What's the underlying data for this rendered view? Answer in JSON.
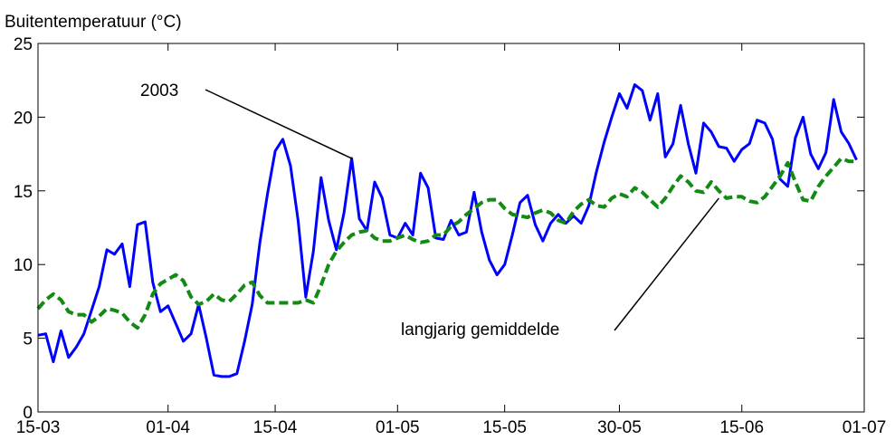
{
  "chart_data": {
    "type": "line",
    "ylabel": "Buitentemperatuur (°C)",
    "xlim": [
      "2003-03-15",
      "2003-07-01"
    ],
    "ylim": [
      0,
      25
    ],
    "x_ticks": [
      {
        "date": "2003-03-15",
        "label": "15-03"
      },
      {
        "date": "2003-04-01",
        "label": "01-04"
      },
      {
        "date": "2003-04-15",
        "label": "15-04"
      },
      {
        "date": "2003-05-01",
        "label": "01-05"
      },
      {
        "date": "2003-05-15",
        "label": "15-05"
      },
      {
        "date": "2003-05-30",
        "label": "30-05"
      },
      {
        "date": "2003-06-15",
        "label": "15-06"
      },
      {
        "date": "2003-07-01",
        "label": "01-07"
      }
    ],
    "y_ticks": [
      0,
      5,
      10,
      15,
      20,
      25
    ],
    "grid": false,
    "series": [
      {
        "name": "2003",
        "color": "#0000ff",
        "style": "solid",
        "points": [
          [
            "2003-03-15",
            5.2
          ],
          [
            "2003-03-16",
            5.3
          ],
          [
            "2003-03-17",
            3.4
          ],
          [
            "2003-03-18",
            5.5
          ],
          [
            "2003-03-19",
            3.7
          ],
          [
            "2003-03-20",
            4.4
          ],
          [
            "2003-03-21",
            5.3
          ],
          [
            "2003-03-22",
            6.9
          ],
          [
            "2003-03-23",
            8.5
          ],
          [
            "2003-03-24",
            11.0
          ],
          [
            "2003-03-25",
            10.7
          ],
          [
            "2003-03-26",
            11.4
          ],
          [
            "2003-03-27",
            8.5
          ],
          [
            "2003-03-28",
            12.7
          ],
          [
            "2003-03-29",
            12.9
          ],
          [
            "2003-03-30",
            8.8
          ],
          [
            "2003-03-31",
            6.8
          ],
          [
            "2003-04-01",
            7.2
          ],
          [
            "2003-04-02",
            6.0
          ],
          [
            "2003-04-03",
            4.8
          ],
          [
            "2003-04-04",
            5.3
          ],
          [
            "2003-04-05",
            7.3
          ],
          [
            "2003-04-06",
            5.0
          ],
          [
            "2003-04-07",
            2.5
          ],
          [
            "2003-04-08",
            2.4
          ],
          [
            "2003-04-09",
            2.4
          ],
          [
            "2003-04-10",
            2.6
          ],
          [
            "2003-04-11",
            4.8
          ],
          [
            "2003-04-12",
            7.3
          ],
          [
            "2003-04-13",
            11.5
          ],
          [
            "2003-04-14",
            14.8
          ],
          [
            "2003-04-15",
            17.7
          ],
          [
            "2003-04-16",
            18.5
          ],
          [
            "2003-04-17",
            16.7
          ],
          [
            "2003-04-18",
            13.0
          ],
          [
            "2003-04-19",
            7.8
          ],
          [
            "2003-04-20",
            10.9
          ],
          [
            "2003-04-21",
            15.9
          ],
          [
            "2003-04-22",
            13.0
          ],
          [
            "2003-04-23",
            11.0
          ],
          [
            "2003-04-24",
            13.5
          ],
          [
            "2003-04-25",
            17.2
          ],
          [
            "2003-04-26",
            13.1
          ],
          [
            "2003-04-27",
            12.3
          ],
          [
            "2003-04-28",
            15.6
          ],
          [
            "2003-04-29",
            14.5
          ],
          [
            "2003-04-30",
            12.0
          ],
          [
            "2003-05-01",
            11.8
          ],
          [
            "2003-05-02",
            12.8
          ],
          [
            "2003-05-03",
            12.0
          ],
          [
            "2003-05-04",
            16.2
          ],
          [
            "2003-05-05",
            15.2
          ],
          [
            "2003-05-06",
            11.8
          ],
          [
            "2003-05-07",
            11.7
          ],
          [
            "2003-05-08",
            13.0
          ],
          [
            "2003-05-09",
            12.0
          ],
          [
            "2003-05-10",
            12.2
          ],
          [
            "2003-05-11",
            14.9
          ],
          [
            "2003-05-12",
            12.2
          ],
          [
            "2003-05-13",
            10.3
          ],
          [
            "2003-05-14",
            9.3
          ],
          [
            "2003-05-15",
            10.0
          ],
          [
            "2003-05-16",
            12.0
          ],
          [
            "2003-05-17",
            14.2
          ],
          [
            "2003-05-18",
            14.7
          ],
          [
            "2003-05-19",
            12.7
          ],
          [
            "2003-05-20",
            11.6
          ],
          [
            "2003-05-21",
            12.8
          ],
          [
            "2003-05-22",
            13.4
          ],
          [
            "2003-05-23",
            12.8
          ],
          [
            "2003-05-24",
            13.3
          ],
          [
            "2003-05-25",
            12.8
          ],
          [
            "2003-05-26",
            14.0
          ],
          [
            "2003-05-27",
            16.3
          ],
          [
            "2003-05-28",
            18.3
          ],
          [
            "2003-05-29",
            20.0
          ],
          [
            "2003-05-30",
            21.6
          ],
          [
            "2003-05-31",
            20.6
          ],
          [
            "2003-06-01",
            22.2
          ],
          [
            "2003-06-02",
            21.8
          ],
          [
            "2003-06-03",
            19.8
          ],
          [
            "2003-06-04",
            21.6
          ],
          [
            "2003-06-05",
            17.3
          ],
          [
            "2003-06-06",
            18.2
          ],
          [
            "2003-06-07",
            20.8
          ],
          [
            "2003-06-08",
            18.2
          ],
          [
            "2003-06-09",
            16.2
          ],
          [
            "2003-06-10",
            19.6
          ],
          [
            "2003-06-11",
            19.0
          ],
          [
            "2003-06-12",
            18.0
          ],
          [
            "2003-06-13",
            17.9
          ],
          [
            "2003-06-14",
            17.0
          ],
          [
            "2003-06-15",
            17.8
          ],
          [
            "2003-06-16",
            18.2
          ],
          [
            "2003-06-17",
            19.8
          ],
          [
            "2003-06-18",
            19.6
          ],
          [
            "2003-06-19",
            18.5
          ],
          [
            "2003-06-20",
            15.8
          ],
          [
            "2003-06-21",
            15.3
          ],
          [
            "2003-06-22",
            18.6
          ],
          [
            "2003-06-23",
            20.0
          ],
          [
            "2003-06-24",
            17.5
          ],
          [
            "2003-06-25",
            16.5
          ],
          [
            "2003-06-26",
            17.6
          ],
          [
            "2003-06-27",
            21.2
          ],
          [
            "2003-06-28",
            19.0
          ],
          [
            "2003-06-29",
            18.2
          ],
          [
            "2003-06-30",
            17.1
          ]
        ]
      },
      {
        "name": "langjarig gemiddelde",
        "color": "#138a13",
        "style": "dashed",
        "points": [
          [
            "2003-03-15",
            7.0
          ],
          [
            "2003-03-16",
            7.6
          ],
          [
            "2003-03-17",
            8.0
          ],
          [
            "2003-03-18",
            7.6
          ],
          [
            "2003-03-19",
            6.8
          ],
          [
            "2003-03-20",
            6.6
          ],
          [
            "2003-03-21",
            6.6
          ],
          [
            "2003-03-22",
            6.1
          ],
          [
            "2003-03-23",
            6.5
          ],
          [
            "2003-03-24",
            7.0
          ],
          [
            "2003-03-25",
            6.9
          ],
          [
            "2003-03-26",
            6.7
          ],
          [
            "2003-03-27",
            6.1
          ],
          [
            "2003-03-28",
            5.7
          ],
          [
            "2003-03-29",
            6.6
          ],
          [
            "2003-03-30",
            8.0
          ],
          [
            "2003-03-31",
            8.7
          ],
          [
            "2003-04-01",
            9.0
          ],
          [
            "2003-04-02",
            9.3
          ],
          [
            "2003-04-03",
            8.9
          ],
          [
            "2003-04-04",
            7.8
          ],
          [
            "2003-04-05",
            7.3
          ],
          [
            "2003-04-06",
            7.5
          ],
          [
            "2003-04-07",
            8.0
          ],
          [
            "2003-04-08",
            7.6
          ],
          [
            "2003-04-09",
            7.5
          ],
          [
            "2003-04-10",
            8.0
          ],
          [
            "2003-04-11",
            8.6
          ],
          [
            "2003-04-12",
            8.8
          ],
          [
            "2003-04-13",
            7.9
          ],
          [
            "2003-04-14",
            7.4
          ],
          [
            "2003-04-15",
            7.4
          ],
          [
            "2003-04-16",
            7.4
          ],
          [
            "2003-04-17",
            7.4
          ],
          [
            "2003-04-18",
            7.4
          ],
          [
            "2003-04-19",
            7.6
          ],
          [
            "2003-04-20",
            7.4
          ],
          [
            "2003-04-21",
            8.6
          ],
          [
            "2003-04-22",
            10.0
          ],
          [
            "2003-04-23",
            10.9
          ],
          [
            "2003-04-24",
            11.5
          ],
          [
            "2003-04-25",
            12.0
          ],
          [
            "2003-04-26",
            12.2
          ],
          [
            "2003-04-27",
            12.3
          ],
          [
            "2003-04-28",
            11.8
          ],
          [
            "2003-04-29",
            11.6
          ],
          [
            "2003-04-30",
            11.6
          ],
          [
            "2003-05-01",
            11.8
          ],
          [
            "2003-05-02",
            12.0
          ],
          [
            "2003-05-03",
            11.7
          ],
          [
            "2003-05-04",
            11.5
          ],
          [
            "2003-05-05",
            11.6
          ],
          [
            "2003-05-06",
            12.0
          ],
          [
            "2003-05-07",
            12.0
          ],
          [
            "2003-05-08",
            12.6
          ],
          [
            "2003-05-09",
            12.9
          ],
          [
            "2003-05-10",
            13.4
          ],
          [
            "2003-05-11",
            13.8
          ],
          [
            "2003-05-12",
            14.2
          ],
          [
            "2003-05-13",
            14.4
          ],
          [
            "2003-05-14",
            14.4
          ],
          [
            "2003-05-15",
            13.8
          ],
          [
            "2003-05-16",
            13.4
          ],
          [
            "2003-05-17",
            13.3
          ],
          [
            "2003-05-18",
            13.2
          ],
          [
            "2003-05-19",
            13.5
          ],
          [
            "2003-05-20",
            13.7
          ],
          [
            "2003-05-21",
            13.5
          ],
          [
            "2003-05-22",
            13.0
          ],
          [
            "2003-05-23",
            12.8
          ],
          [
            "2003-05-24",
            13.6
          ],
          [
            "2003-05-25",
            14.1
          ],
          [
            "2003-05-26",
            14.4
          ],
          [
            "2003-05-27",
            14.0
          ],
          [
            "2003-05-28",
            13.9
          ],
          [
            "2003-05-29",
            14.5
          ],
          [
            "2003-05-30",
            14.8
          ],
          [
            "2003-05-31",
            14.6
          ],
          [
            "2003-06-01",
            15.2
          ],
          [
            "2003-06-02",
            14.9
          ],
          [
            "2003-06-03",
            14.4
          ],
          [
            "2003-06-04",
            13.9
          ],
          [
            "2003-06-05",
            14.5
          ],
          [
            "2003-06-06",
            15.3
          ],
          [
            "2003-06-07",
            16.0
          ],
          [
            "2003-06-08",
            15.6
          ],
          [
            "2003-06-09",
            15.0
          ],
          [
            "2003-06-10",
            14.9
          ],
          [
            "2003-06-11",
            15.6
          ],
          [
            "2003-06-12",
            15.0
          ],
          [
            "2003-06-13",
            14.5
          ],
          [
            "2003-06-14",
            14.6
          ],
          [
            "2003-06-15",
            14.6
          ],
          [
            "2003-06-16",
            14.3
          ],
          [
            "2003-06-17",
            14.2
          ],
          [
            "2003-06-18",
            14.6
          ],
          [
            "2003-06-19",
            15.3
          ],
          [
            "2003-06-20",
            16.0
          ],
          [
            "2003-06-21",
            16.9
          ],
          [
            "2003-06-22",
            15.6
          ],
          [
            "2003-06-23",
            14.4
          ],
          [
            "2003-06-24",
            14.3
          ],
          [
            "2003-06-25",
            15.3
          ],
          [
            "2003-06-26",
            16.0
          ],
          [
            "2003-06-27",
            16.6
          ],
          [
            "2003-06-28",
            17.2
          ],
          [
            "2003-06-29",
            17.0
          ],
          [
            "2003-06-30",
            17.0
          ]
        ]
      }
    ],
    "annotations": [
      {
        "text": "2003",
        "series": "2003",
        "point": [
          "2003-04-25",
          17.2
        ]
      },
      {
        "text": "langjarig gemiddelde",
        "series": "langjarig gemiddelde",
        "point": [
          "2003-06-12",
          14.5
        ]
      }
    ]
  }
}
